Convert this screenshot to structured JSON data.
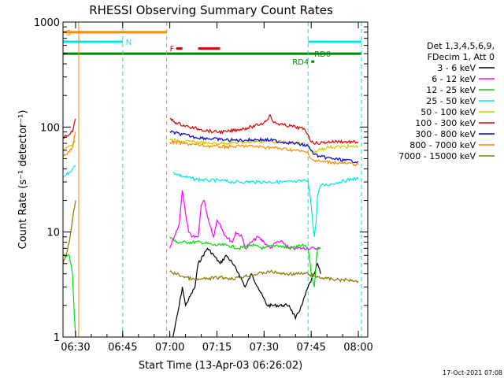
{
  "title": "RHESSI Observing Summary Count Rates",
  "footer_date": "17-Oct-2021 07:08",
  "chart_data": {
    "type": "line",
    "title": "RHESSI Observing Summary Count Rates",
    "xlabel": "Start Time (13-Apr-03 06:26:02)",
    "ylabel": "Count Rate (s⁻¹ detector⁻¹)",
    "x_unit": "minutes after 06:26:02",
    "xlim": [
      0,
      97
    ],
    "ylim": [
      1,
      1000
    ],
    "yscale": "log",
    "x_ticks": [
      {
        "label": "06:30",
        "x": 4
      },
      {
        "label": "06:45",
        "x": 19
      },
      {
        "label": "07:00",
        "x": 34
      },
      {
        "label": "07:15",
        "x": 49
      },
      {
        "label": "07:30",
        "x": 64
      },
      {
        "label": "07:45",
        "x": 79
      },
      {
        "label": "08:00",
        "x": 94
      }
    ],
    "y_ticks": [
      {
        "label": "1",
        "y": 1
      },
      {
        "label": "10",
        "y": 10
      },
      {
        "label": "100",
        "y": 100
      },
      {
        "label": "1000",
        "y": 1000
      }
    ],
    "legend": {
      "placement": "right",
      "header": [
        "Det 1,3,4,5,6,9,",
        "FDecim 1, Att 0"
      ],
      "entries": [
        {
          "label": "3 - 6 keV",
          "color": "#000000"
        },
        {
          "label": "6 - 12 keV",
          "color": "#ff00ff"
        },
        {
          "label": "12 - 25 keV",
          "color": "#00dd00"
        },
        {
          "label": "25 - 50 keV",
          "color": "#00e5e5"
        },
        {
          "label": "50 - 100 keV",
          "color": "#cccc00"
        },
        {
          "label": "100 - 300 keV",
          "color": "#dd0000"
        },
        {
          "label": "300 - 800 keV",
          "color": "#0000dd"
        },
        {
          "label": "800 - 7000 keV",
          "color": "#ff8800"
        },
        {
          "label": "7000 - 15000 keV",
          "color": "#887700"
        }
      ]
    },
    "series": [
      {
        "name": "3 - 6 keV",
        "color": "#000000",
        "points": [
          [
            35,
            1
          ],
          [
            37,
            2
          ],
          [
            38,
            3
          ],
          [
            39,
            2
          ],
          [
            42,
            3
          ],
          [
            43,
            5
          ],
          [
            46,
            7
          ],
          [
            48,
            6
          ],
          [
            50,
            5
          ],
          [
            52,
            6
          ],
          [
            54,
            5
          ],
          [
            56,
            4
          ],
          [
            58,
            3
          ],
          [
            60,
            4
          ],
          [
            62,
            3
          ],
          [
            65,
            2
          ],
          [
            67,
            2
          ],
          [
            70,
            2
          ],
          [
            72,
            2
          ],
          [
            74,
            1.5
          ],
          [
            76,
            2
          ],
          [
            78,
            3
          ],
          [
            80,
            4
          ],
          [
            81,
            5
          ],
          [
            82,
            4
          ]
        ]
      },
      {
        "name": "6 - 12 keV",
        "color": "#ff00ff",
        "points": [
          [
            34,
            7
          ],
          [
            37,
            12
          ],
          [
            38,
            25
          ],
          [
            39,
            15
          ],
          [
            40,
            10
          ],
          [
            41,
            9
          ],
          [
            43,
            9
          ],
          [
            44,
            18
          ],
          [
            45,
            20
          ],
          [
            46,
            14
          ],
          [
            48,
            9
          ],
          [
            49,
            13
          ],
          [
            50,
            12
          ],
          [
            51,
            10
          ],
          [
            52,
            9
          ],
          [
            54,
            8
          ],
          [
            55,
            10
          ],
          [
            57,
            9
          ],
          [
            58,
            7
          ],
          [
            60,
            8
          ],
          [
            62,
            9
          ],
          [
            64,
            8
          ],
          [
            66,
            7
          ],
          [
            68,
            8
          ],
          [
            70,
            8
          ],
          [
            72,
            7
          ],
          [
            74,
            7
          ],
          [
            76,
            7
          ],
          [
            78,
            7
          ],
          [
            80,
            7
          ],
          [
            82,
            7
          ]
        ]
      },
      {
        "name": "12 - 25 keV",
        "color": "#00dd00",
        "points": [
          [
            0,
            6
          ],
          [
            2,
            6
          ],
          [
            3,
            4
          ],
          [
            4,
            1
          ],
          [
            34,
            9
          ],
          [
            36,
            8
          ],
          [
            40,
            8
          ],
          [
            44,
            8
          ],
          [
            48,
            7.5
          ],
          [
            52,
            7.5
          ],
          [
            56,
            7
          ],
          [
            60,
            7.5
          ],
          [
            64,
            7
          ],
          [
            68,
            7.5
          ],
          [
            72,
            7
          ],
          [
            76,
            7.5
          ],
          [
            78,
            7
          ],
          [
            79,
            4
          ],
          [
            80,
            3
          ],
          [
            81,
            7
          ],
          [
            82,
            7
          ]
        ]
      },
      {
        "name": "25 - 50 keV",
        "color": "#00e5e5",
        "points": [
          [
            0,
            34
          ],
          [
            1,
            35
          ],
          [
            2,
            37
          ],
          [
            3,
            40
          ],
          [
            4,
            43
          ],
          [
            35,
            37
          ],
          [
            38,
            34
          ],
          [
            42,
            32
          ],
          [
            46,
            31
          ],
          [
            50,
            31
          ],
          [
            54,
            30
          ],
          [
            58,
            30
          ],
          [
            62,
            30
          ],
          [
            66,
            30
          ],
          [
            70,
            30
          ],
          [
            74,
            30
          ],
          [
            77,
            31
          ],
          [
            78,
            31
          ],
          [
            79,
            18
          ],
          [
            79.5,
            12
          ],
          [
            80,
            9
          ],
          [
            80.5,
            12
          ],
          [
            81,
            22
          ],
          [
            82,
            28
          ],
          [
            84,
            28
          ],
          [
            88,
            30
          ],
          [
            92,
            32
          ],
          [
            94,
            32
          ]
        ]
      },
      {
        "name": "50 - 100 keV",
        "color": "#cccc00",
        "points": [
          [
            0,
            62
          ],
          [
            1,
            64
          ],
          [
            2,
            66
          ],
          [
            3,
            68
          ],
          [
            4,
            75
          ],
          [
            34,
            75
          ],
          [
            38,
            73
          ],
          [
            42,
            72
          ],
          [
            46,
            70
          ],
          [
            50,
            70
          ],
          [
            54,
            71
          ],
          [
            58,
            72
          ],
          [
            62,
            73
          ],
          [
            66,
            73
          ],
          [
            70,
            72
          ],
          [
            74,
            70
          ],
          [
            77,
            69
          ],
          [
            78,
            66
          ],
          [
            79,
            58
          ],
          [
            80,
            57
          ],
          [
            81,
            60
          ],
          [
            84,
            64
          ],
          [
            88,
            65
          ],
          [
            92,
            65
          ],
          [
            94,
            65
          ]
        ]
      },
      {
        "name": "100 - 300 keV",
        "color": "#dd0000",
        "points": [
          [
            0,
            80
          ],
          [
            1,
            82
          ],
          [
            2,
            85
          ],
          [
            3,
            90
          ],
          [
            4,
            120
          ],
          [
            34,
            120
          ],
          [
            36,
            110
          ],
          [
            40,
            100
          ],
          [
            44,
            95
          ],
          [
            48,
            90
          ],
          [
            52,
            90
          ],
          [
            56,
            95
          ],
          [
            60,
            100
          ],
          [
            64,
            110
          ],
          [
            66,
            130
          ],
          [
            67,
            110
          ],
          [
            70,
            105
          ],
          [
            74,
            100
          ],
          [
            77,
            95
          ],
          [
            78,
            85
          ],
          [
            79,
            72
          ],
          [
            81,
            70
          ],
          [
            84,
            72
          ],
          [
            88,
            73
          ],
          [
            92,
            72
          ],
          [
            94,
            72
          ]
        ]
      },
      {
        "name": "300 - 800 keV",
        "color": "#0000dd",
        "points": [
          [
            34,
            90
          ],
          [
            38,
            85
          ],
          [
            42,
            80
          ],
          [
            46,
            78
          ],
          [
            50,
            76
          ],
          [
            54,
            75
          ],
          [
            58,
            75
          ],
          [
            62,
            76
          ],
          [
            66,
            75
          ],
          [
            70,
            72
          ],
          [
            74,
            70
          ],
          [
            78,
            66
          ],
          [
            79,
            60
          ],
          [
            80,
            55
          ],
          [
            82,
            52
          ],
          [
            86,
            50
          ],
          [
            90,
            48
          ],
          [
            94,
            47
          ]
        ]
      },
      {
        "name": "800 - 7000 keV",
        "color": "#ff8800",
        "points": [
          [
            0,
            52
          ],
          [
            1,
            55
          ],
          [
            2,
            58
          ],
          [
            3,
            64
          ],
          [
            4,
            90
          ],
          [
            34,
            72
          ],
          [
            38,
            70
          ],
          [
            42,
            68
          ],
          [
            46,
            66
          ],
          [
            50,
            65
          ],
          [
            54,
            65
          ],
          [
            58,
            66
          ],
          [
            62,
            65
          ],
          [
            66,
            64
          ],
          [
            70,
            62
          ],
          [
            74,
            60
          ],
          [
            78,
            57
          ],
          [
            79,
            50
          ],
          [
            80,
            48
          ],
          [
            82,
            47
          ],
          [
            86,
            46
          ],
          [
            90,
            45
          ],
          [
            94,
            44
          ]
        ]
      },
      {
        "name": "7000 - 15000 keV",
        "color": "#887700",
        "points": [
          [
            0,
            5
          ],
          [
            1,
            6
          ],
          [
            2,
            8
          ],
          [
            3,
            13
          ],
          [
            4,
            20
          ],
          [
            34,
            4.2
          ],
          [
            38,
            3.8
          ],
          [
            42,
            3.5
          ],
          [
            46,
            3.6
          ],
          [
            50,
            3.7
          ],
          [
            54,
            3.6
          ],
          [
            58,
            3.8
          ],
          [
            62,
            4
          ],
          [
            66,
            4.2
          ],
          [
            70,
            4
          ],
          [
            74,
            4
          ],
          [
            78,
            4
          ],
          [
            80,
            3.8
          ],
          [
            84,
            3.6
          ],
          [
            88,
            3.5
          ],
          [
            92,
            3.5
          ],
          [
            94,
            3.4
          ]
        ]
      }
    ],
    "vertical_markers": [
      {
        "x": 19,
        "color": "#00e5e5",
        "style": "dashed"
      },
      {
        "x": 33,
        "color": "#ff8800",
        "style": "dashed"
      },
      {
        "x": 78,
        "color": "#00e5e5",
        "style": "dashed"
      },
      {
        "x": 95,
        "color": "#00e5e5",
        "style": "dashed"
      },
      {
        "x": 5,
        "color": "#ff8800",
        "style": "solid"
      }
    ],
    "flag_bars": [
      {
        "label": "S",
        "color": "#ff8800",
        "x0": 0,
        "x1": 33,
        "y": 800,
        "label_x": 1
      },
      {
        "label": "N",
        "color": "#00e5e5",
        "x0": 0,
        "x1": 19,
        "y": 650,
        "label_x": 20
      },
      {
        "label": "N",
        "color": "#00e5e5",
        "x0": 78,
        "x1": 95,
        "y": 650,
        "label_x": null
      },
      {
        "label": "F",
        "color": "#dd0000",
        "x0": 36,
        "x1": 38,
        "y": 560,
        "label_x": 34
      },
      {
        "label": "F",
        "color": "#dd0000",
        "x0": 43,
        "x1": 50,
        "y": 560,
        "label_x": null
      },
      {
        "label": "RD0",
        "color": "#008800",
        "x0": 0,
        "x1": 95,
        "y": 500,
        "label_x": 80
      },
      {
        "label": "RD4",
        "color": "#008800",
        "x0": 79,
        "x1": 80,
        "y": 420,
        "label_x": 73
      }
    ]
  }
}
